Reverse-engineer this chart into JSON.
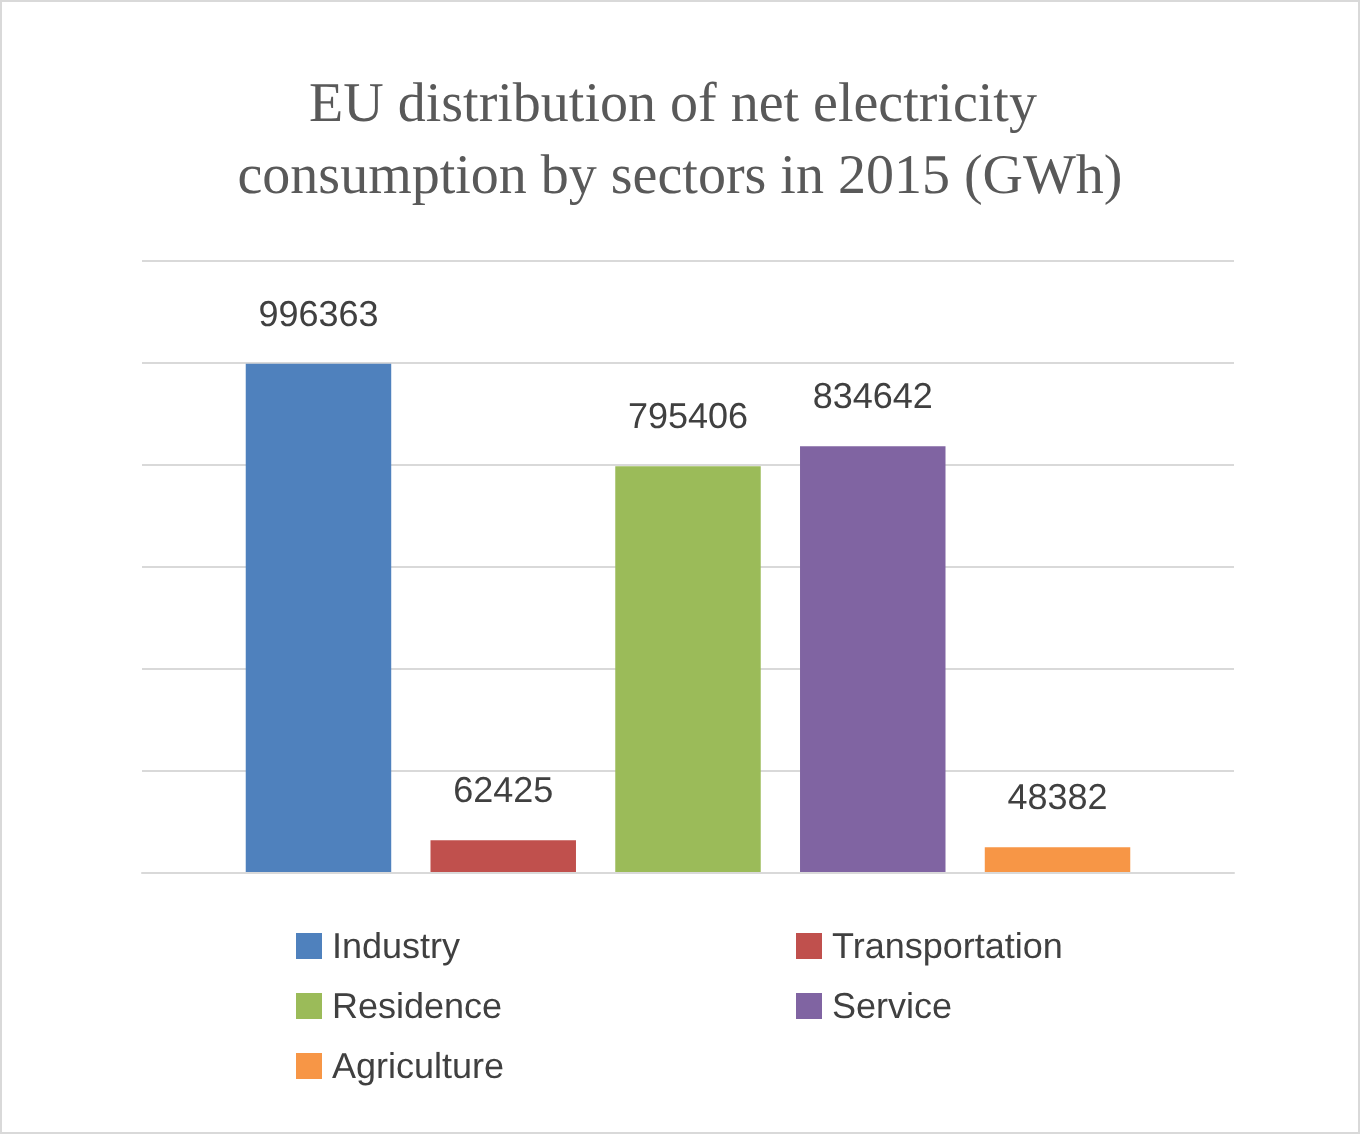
{
  "chart_data": {
    "type": "bar",
    "title": "EU distribution of net electricity consumption by sectors in 2015 (GWh)",
    "categories": [
      null
    ],
    "series": [
      {
        "name": "Industry",
        "color": "#4f81bd",
        "values": [
          996363
        ]
      },
      {
        "name": "Transportation",
        "color": "#c0504d",
        "values": [
          62425
        ]
      },
      {
        "name": "Residence",
        "color": "#9bbb59",
        "values": [
          795406
        ]
      },
      {
        "name": "Service",
        "color": "#8064a2",
        "values": [
          834642
        ]
      },
      {
        "name": "Agriculture",
        "color": "#f79646",
        "values": [
          48382
        ]
      }
    ],
    "ylim": [
      0,
      1200000
    ],
    "yticks": [
      {
        "value": 0,
        "label": null
      },
      {
        "value": 200000,
        "label": null
      },
      {
        "value": 400000,
        "label": null
      },
      {
        "value": 600000,
        "label": null
      },
      {
        "value": 800000,
        "label": null
      },
      {
        "value": 1000000,
        "label": null
      },
      {
        "value": 1200000,
        "label": null
      }
    ],
    "grid": "y",
    "legend": "bottom",
    "data_labels": true
  }
}
